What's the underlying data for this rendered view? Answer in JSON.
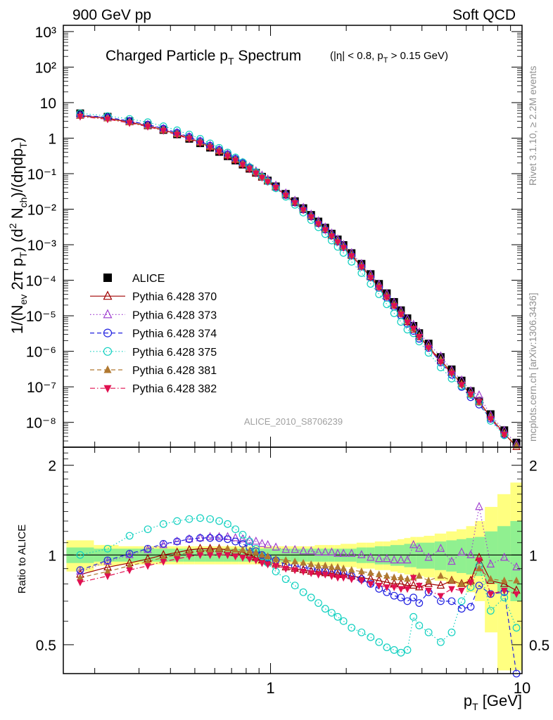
{
  "header": {
    "left": "900 GeV pp",
    "right": "Soft QCD"
  },
  "side": {
    "rivet": "Rivet 3.1.10, ≥ 2.2M events",
    "mcplots": "mcplots.cern.ch [arXiv:1306.3436]"
  },
  "plot_title": {
    "main": "Charged Particle p",
    "main_sub": "T",
    "main_tail": " Spectrum",
    "cuts_a": "(|η| < 0.8, p",
    "cuts_sub": "T",
    "cuts_b": " > 0.15 GeV)"
  },
  "analysis_id": "ALICE_2010_S8706239",
  "ylabel_main": "1/(N_ev 2π p_T) (d² N_ch)/(dη dp_T)",
  "ylabel_ratio": "Ratio to ALICE",
  "xlabel": "p_T [GeV]",
  "main_ticks": {
    "y": [
      "10³",
      "10²",
      "10",
      "1",
      "10⁻¹",
      "10⁻²",
      "10⁻³",
      "10⁻⁴",
      "10⁻⁵",
      "10⁻⁶",
      "10⁻⁷",
      "10⁻⁸"
    ],
    "x": [
      "1",
      "10"
    ]
  },
  "ratio_ticks": {
    "y": [
      "2",
      "1",
      "0.5"
    ]
  },
  "legend": [
    {
      "label": "ALICE"
    },
    {
      "label": "Pythia 6.428 370"
    },
    {
      "label": "Pythia 6.428 373"
    },
    {
      "label": "Pythia 6.428 374"
    },
    {
      "label": "Pythia 6.428 375"
    },
    {
      "label": "Pythia 6.428 381"
    },
    {
      "label": "Pythia 6.428 382"
    }
  ],
  "chart_data": {
    "type": "scatter",
    "title": "Charged Particle pT Spectrum (|η| < 0.8, pT > 0.15 GeV)",
    "xlabel": "pT [GeV]",
    "ylabel": "1/(Nev 2π pT) (d² Nch)/(dη dpT)",
    "xscale": "log",
    "yscale": "log",
    "xlim": [
      0.15,
      10
    ],
    "ylim": [
      2e-09,
      1500.0
    ],
    "ratio_ylim": [
      0.4,
      2.3
    ],
    "ratio_yscale": "log",
    "legend_position": "bottom-left",
    "x": [
      0.175,
      0.225,
      0.275,
      0.325,
      0.375,
      0.425,
      0.475,
      0.525,
      0.575,
      0.625,
      0.675,
      0.725,
      0.775,
      0.825,
      0.875,
      0.925,
      0.975,
      1.05,
      1.15,
      1.25,
      1.35,
      1.45,
      1.55,
      1.65,
      1.75,
      1.85,
      1.95,
      2.1,
      2.3,
      2.5,
      2.7,
      2.9,
      3.1,
      3.3,
      3.5,
      3.7,
      3.9,
      4.25,
      4.75,
      5.25,
      5.75,
      6.25,
      6.75,
      7.5,
      8.5,
      9.5
    ],
    "series": [
      {
        "name": "ALICE",
        "color": "#000000",
        "marker": "filled-square",
        "values": [
          5.0,
          4.0,
          3.0,
          2.3,
          1.7,
          1.28,
          0.96,
          0.72,
          0.54,
          0.41,
          0.31,
          0.235,
          0.18,
          0.138,
          0.106,
          0.082,
          0.064,
          0.044,
          0.027,
          0.0168,
          0.0107,
          0.0069,
          0.0045,
          0.00302,
          0.00205,
          0.00141,
          0.00098,
          0.00058,
          0.00029,
          0.000149,
          7.9e-05,
          4.3e-05,
          2.45e-05,
          1.43e-05,
          8.5e-06,
          5.2e-06,
          3.25e-06,
          1.65e-06,
          6.9e-07,
          3.1e-07,
          1.5e-07,
          7.6e-08,
          4e-08,
          1.7e-08,
          6e-09,
          2.7e-09
        ],
        "ratio_band_stat": [
          0.06,
          0.05,
          0.05,
          0.05,
          0.05,
          0.05,
          0.05,
          0.05,
          0.05,
          0.05,
          0.05,
          0.05,
          0.05,
          0.05,
          0.05,
          0.05,
          0.05,
          0.05,
          0.05,
          0.05,
          0.05,
          0.05,
          0.05,
          0.05,
          0.05,
          0.05,
          0.05,
          0.05,
          0.06,
          0.06,
          0.07,
          0.07,
          0.08,
          0.08,
          0.09,
          0.09,
          0.1,
          0.1,
          0.11,
          0.12,
          0.13,
          0.14,
          0.15,
          0.2,
          0.25,
          0.3
        ],
        "ratio_band_total": [
          0.12,
          0.08,
          0.07,
          0.07,
          0.07,
          0.07,
          0.07,
          0.07,
          0.07,
          0.07,
          0.07,
          0.07,
          0.07,
          0.07,
          0.07,
          0.07,
          0.07,
          0.07,
          0.07,
          0.07,
          0.07,
          0.07,
          0.08,
          0.08,
          0.08,
          0.08,
          0.09,
          0.09,
          0.1,
          0.1,
          0.11,
          0.11,
          0.12,
          0.13,
          0.14,
          0.15,
          0.15,
          0.16,
          0.18,
          0.2,
          0.22,
          0.25,
          0.3,
          0.45,
          0.6,
          0.75
        ]
      },
      {
        "name": "Pythia 6.428 370",
        "color": "#a00000",
        "marker": "open-triangle-up",
        "line": "solid",
        "ratio": [
          0.86,
          0.91,
          0.94,
          0.97,
          1.0,
          1.02,
          1.04,
          1.05,
          1.05,
          1.05,
          1.04,
          1.03,
          1.02,
          1.0,
          0.98,
          0.96,
          0.95,
          0.93,
          0.91,
          0.9,
          0.89,
          0.88,
          0.88,
          0.87,
          0.87,
          0.86,
          0.86,
          0.85,
          0.84,
          0.83,
          0.82,
          0.81,
          0.8,
          0.8,
          0.79,
          0.79,
          0.78,
          0.8,
          0.79,
          0.82,
          0.8,
          0.82,
          0.98,
          0.82,
          0.8,
          0.76
        ]
      },
      {
        "name": "Pythia 6.428 373",
        "color": "#a040d0",
        "marker": "open-triangle-up",
        "line": "dotted",
        "ratio": [
          0.88,
          0.95,
          1.0,
          1.04,
          1.08,
          1.11,
          1.13,
          1.14,
          1.15,
          1.15,
          1.15,
          1.14,
          1.13,
          1.12,
          1.11,
          1.09,
          1.08,
          1.06,
          1.04,
          1.04,
          1.03,
          1.03,
          1.02,
          1.02,
          1.02,
          1.01,
          1.01,
          1.01,
          1.0,
          0.98,
          0.97,
          0.97,
          0.96,
          0.96,
          0.96,
          1.08,
          1.05,
          0.98,
          1.05,
          0.95,
          1.02,
          1.0,
          1.45,
          0.93,
          0.98,
          0.91
        ]
      },
      {
        "name": "Pythia 6.428 374",
        "color": "#2020e0",
        "marker": "open-circle",
        "line": "dashed",
        "ratio": [
          0.89,
          0.96,
          1.01,
          1.05,
          1.09,
          1.11,
          1.13,
          1.14,
          1.14,
          1.14,
          1.13,
          1.11,
          1.09,
          1.06,
          1.03,
          1.0,
          0.98,
          0.96,
          0.93,
          0.92,
          0.91,
          0.9,
          0.89,
          0.88,
          0.88,
          0.87,
          0.87,
          0.85,
          0.83,
          0.8,
          0.77,
          0.75,
          0.73,
          0.72,
          0.7,
          0.72,
          0.69,
          0.75,
          0.7,
          0.7,
          0.66,
          0.67,
          0.79,
          0.74,
          0.75,
          0.4
        ]
      },
      {
        "name": "Pythia 6.428 375",
        "color": "#10d0c0",
        "marker": "open-circle",
        "line": "dotted",
        "ratio": [
          1.0,
          1.05,
          1.16,
          1.22,
          1.27,
          1.3,
          1.32,
          1.33,
          1.32,
          1.3,
          1.27,
          1.22,
          1.17,
          1.11,
          1.05,
          0.99,
          0.94,
          0.88,
          0.83,
          0.79,
          0.75,
          0.72,
          0.69,
          0.66,
          0.64,
          0.62,
          0.6,
          0.57,
          0.55,
          0.53,
          0.51,
          0.49,
          0.48,
          0.47,
          0.48,
          0.62,
          0.58,
          0.55,
          0.51,
          0.55,
          0.7,
          0.78,
          0.92,
          0.65,
          0.72,
          0.57
        ]
      },
      {
        "name": "Pythia 6.428 381",
        "color": "#b07830",
        "marker": "filled-triangle-up",
        "line": "dashed",
        "ratio": [
          0.84,
          0.88,
          0.92,
          0.95,
          0.98,
          1.0,
          1.02,
          1.03,
          1.04,
          1.05,
          1.05,
          1.04,
          1.04,
          1.03,
          1.02,
          1.0,
          0.99,
          0.97,
          0.96,
          0.95,
          0.94,
          0.93,
          0.92,
          0.92,
          0.91,
          0.91,
          0.9,
          0.89,
          0.88,
          0.87,
          0.86,
          0.85,
          0.84,
          0.84,
          0.83,
          0.84,
          0.85,
          0.82,
          0.85,
          0.82,
          0.8,
          0.81,
          0.9,
          0.83,
          0.82,
          0.82
        ]
      },
      {
        "name": "Pythia 6.428 382",
        "color": "#e01050",
        "marker": "filled-triangle-down",
        "line": "dashdot",
        "ratio": [
          0.81,
          0.85,
          0.89,
          0.92,
          0.95,
          0.97,
          0.99,
          1.0,
          1.0,
          1.0,
          1.0,
          0.99,
          0.98,
          0.97,
          0.96,
          0.94,
          0.93,
          0.92,
          0.9,
          0.89,
          0.88,
          0.87,
          0.86,
          0.86,
          0.85,
          0.84,
          0.84,
          0.83,
          0.82,
          0.8,
          0.79,
          0.78,
          0.78,
          0.77,
          0.77,
          0.84,
          0.79,
          0.76,
          0.73,
          0.77,
          0.76,
          0.81,
          0.96,
          0.74,
          0.76,
          0.74
        ]
      }
    ]
  }
}
